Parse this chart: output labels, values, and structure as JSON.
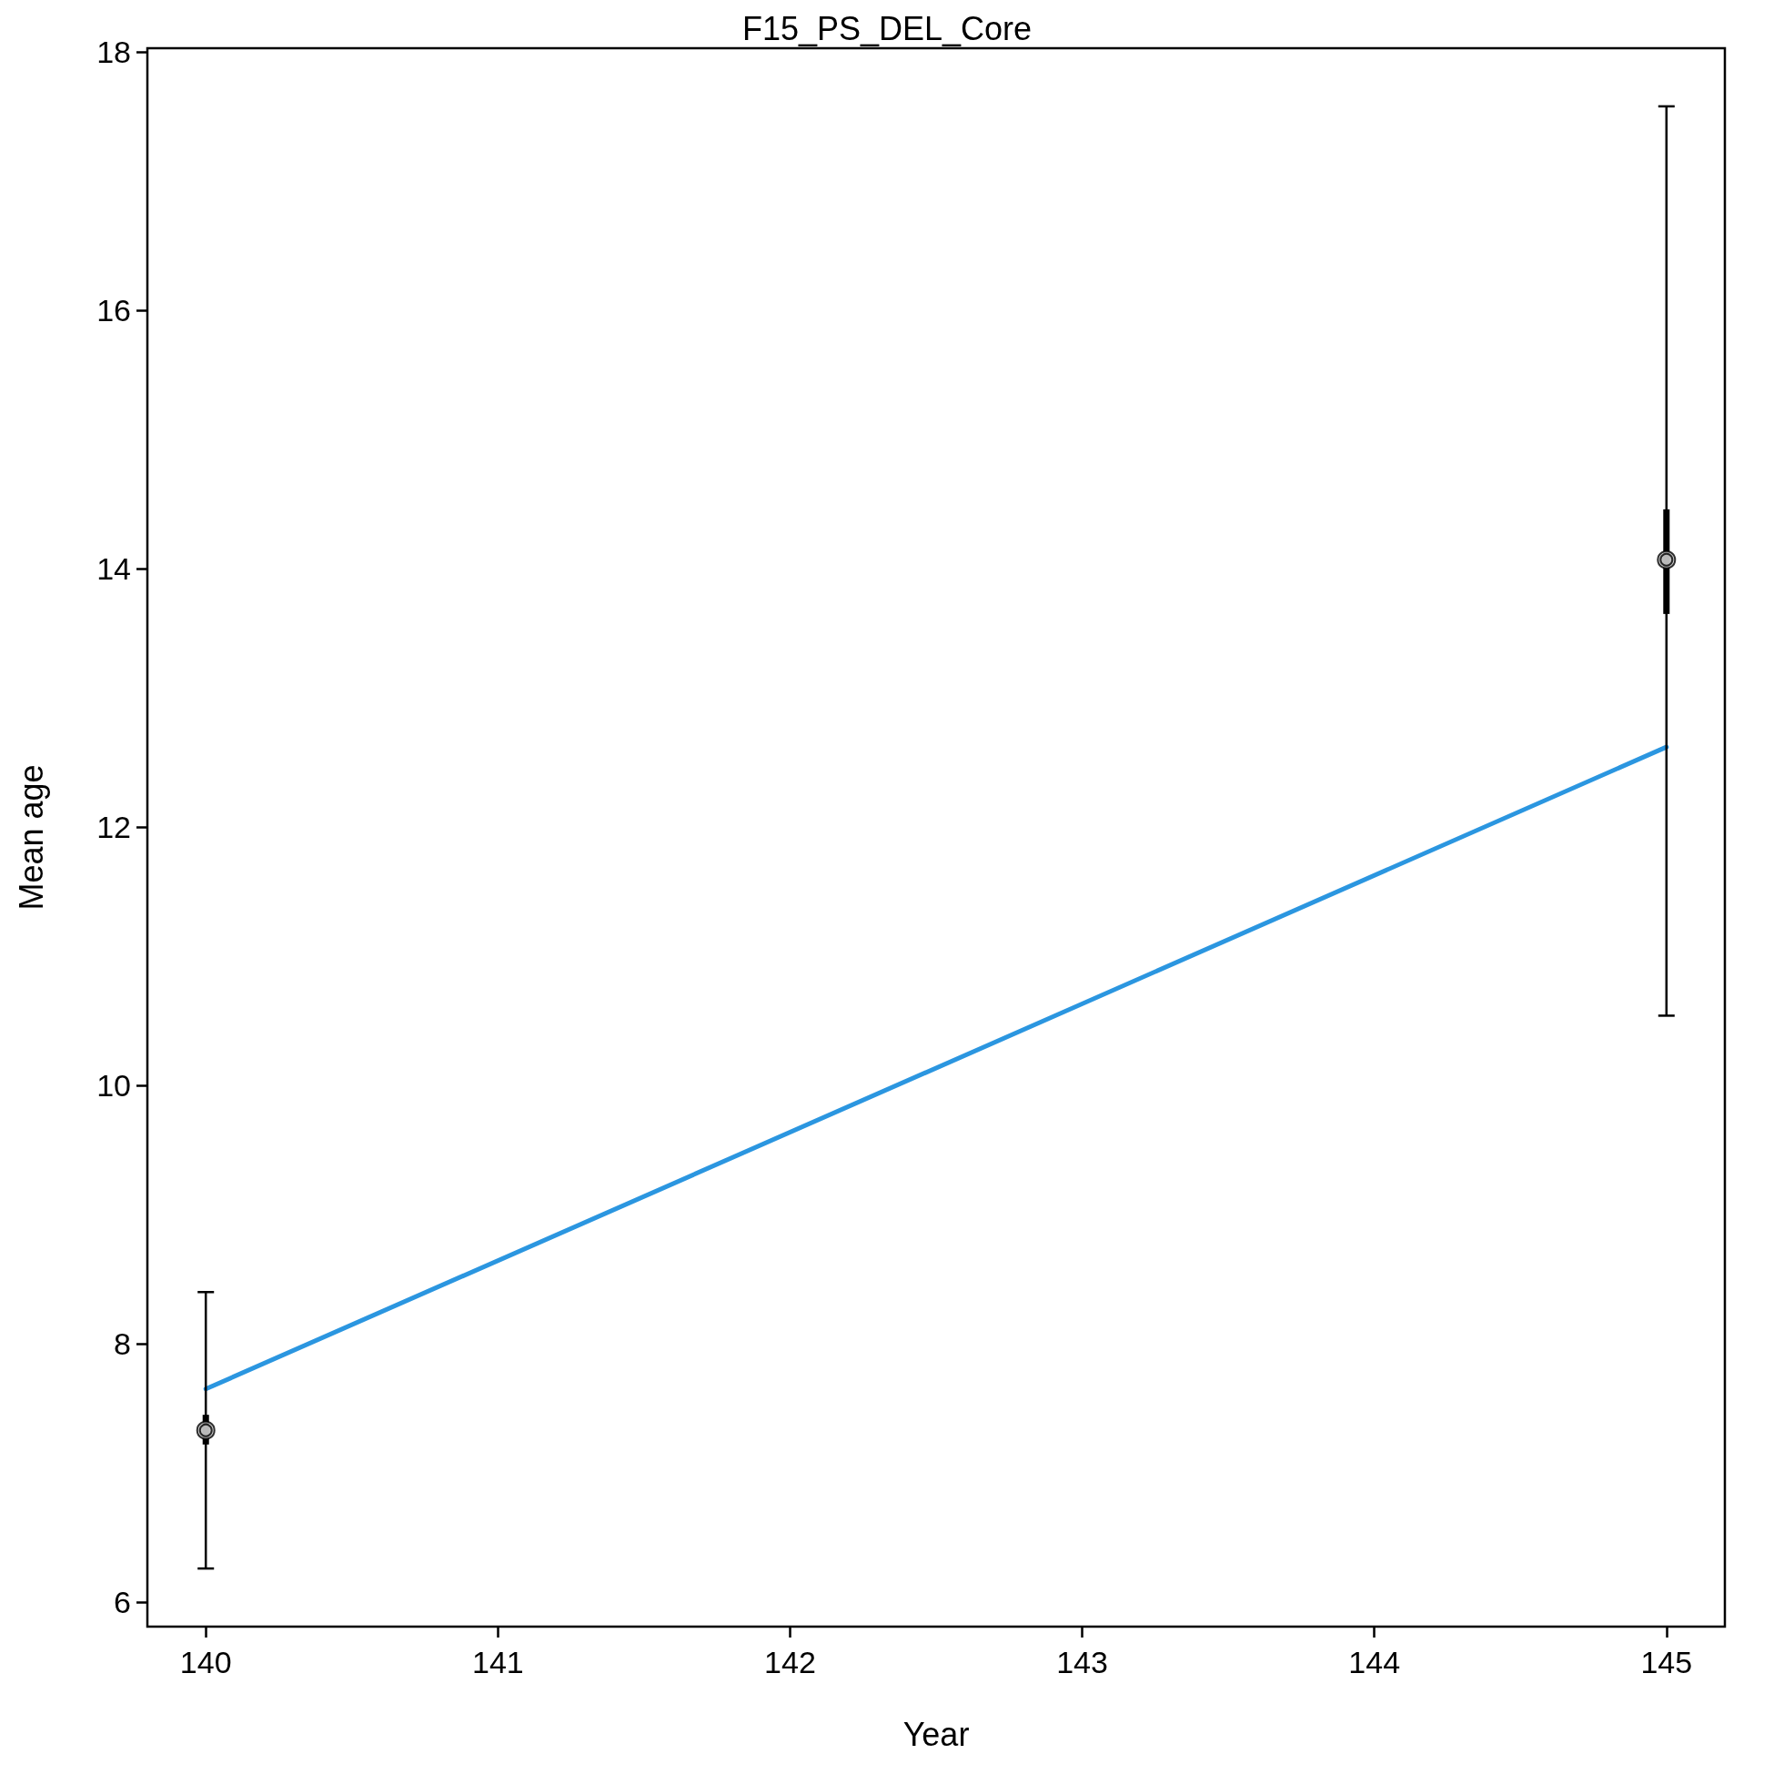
{
  "chart_data": {
    "type": "scatter",
    "title": "F15_PS_DEL_Core",
    "xlabel": "Year",
    "ylabel": "Mean age",
    "x": [
      140,
      145
    ],
    "xlim": [
      139.8,
      145.2
    ],
    "xticks": [
      140,
      141,
      142,
      143,
      144,
      145
    ],
    "ylim": [
      5.81,
      18.03
    ],
    "yticks": [
      6,
      8,
      10,
      12,
      14,
      16,
      18
    ],
    "grid": false,
    "marker": "circle",
    "series": [
      {
        "color": "#c0c0c0",
        "values": [
          7.33,
          14.07
        ],
        "errors": [
          [
            6.26,
            8.4
          ],
          [
            10.54,
            17.58
          ]
        ]
      },
      {
        "color": "#c0c0c0",
        "values": [
          7.33,
          14.07
        ],
        "errors": [
          [
            7.22,
            7.45
          ],
          [
            13.65,
            14.46
          ]
        ]
      },
      {
        "type": "line",
        "color": "#2b96e0",
        "marker": "none",
        "line_style": "solid",
        "values": [
          7.65,
          12.62
        ]
      }
    ]
  }
}
